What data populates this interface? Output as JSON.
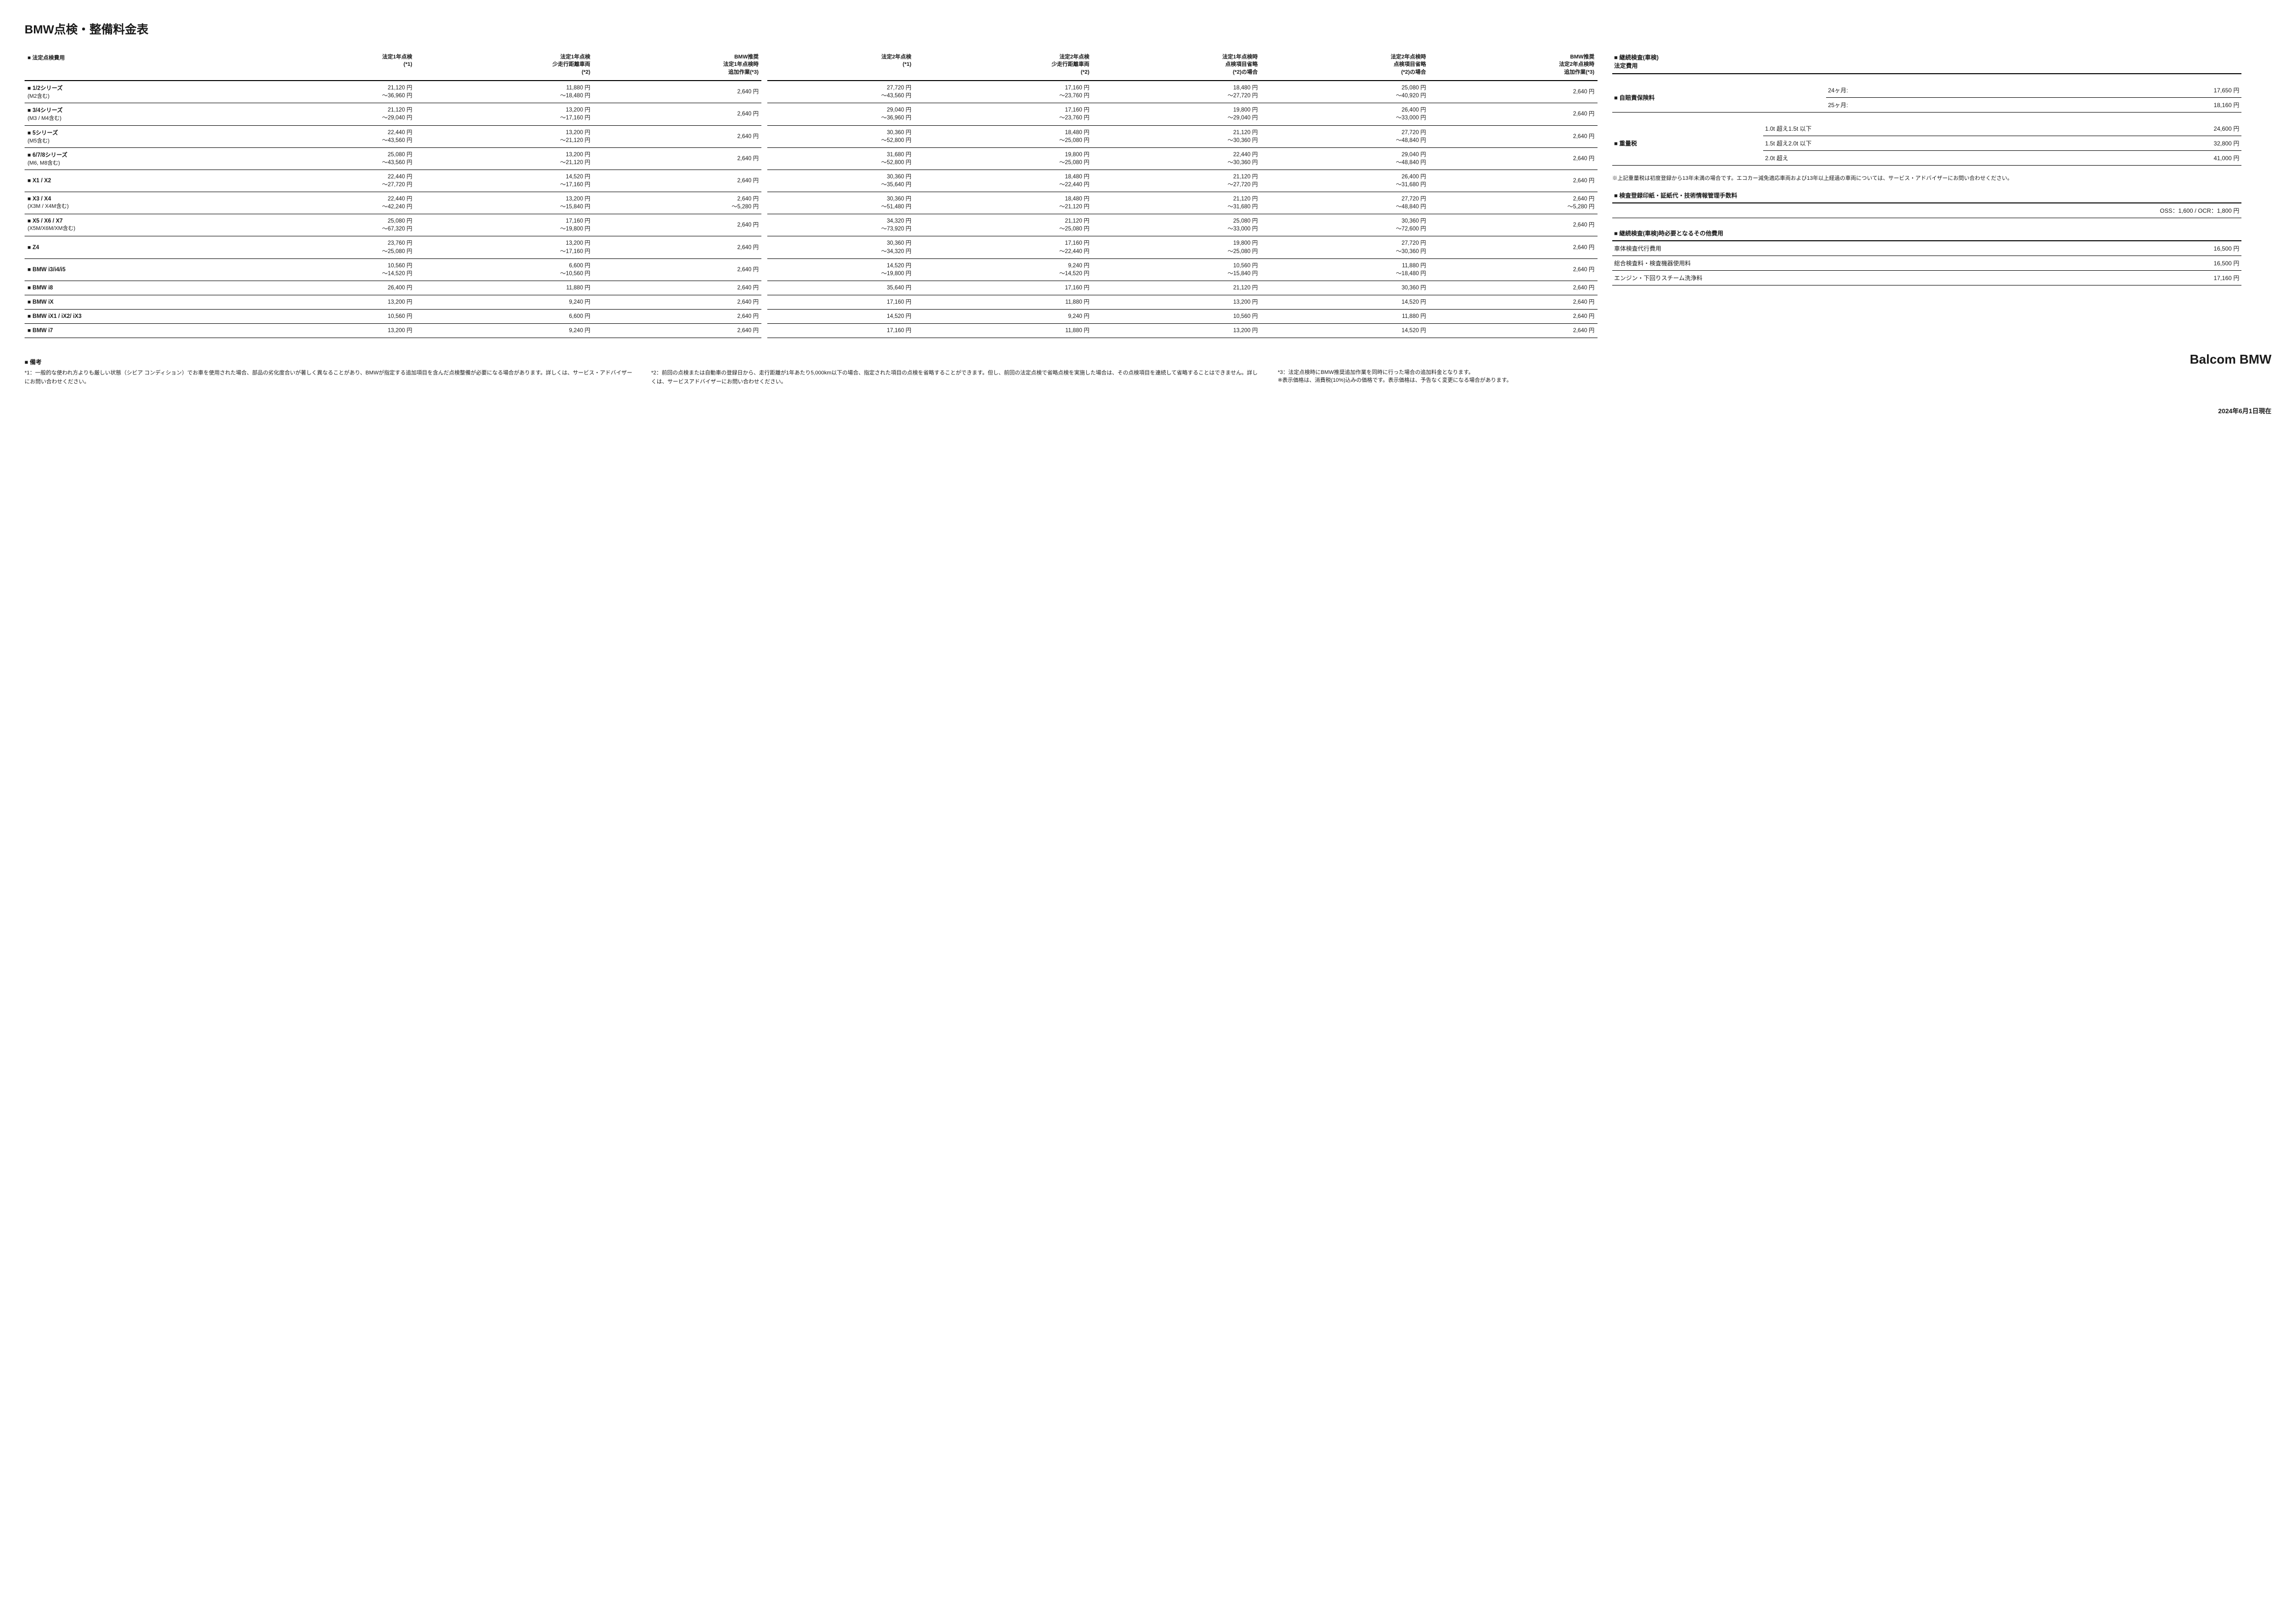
{
  "title": "BMW点検・整備料金表",
  "mainTable": {
    "heading": "■ 法定点検費用",
    "columns": [
      "法定1年点検\n(*1)",
      "法定1年点検\n少走行距離車両\n(*2)",
      "BMW推奨\n法定1年点検時\n追加作業(*3)",
      "法定2年点検\n(*1)",
      "法定2年点検\n少走行距離車両\n(*2)",
      "法定1年点検時\n点検項目省略\n(*2)の場合",
      "法定2年点検時\n点検項目省略\n(*2)の場合",
      "BMW推奨\n法定2年点検時\n追加作業(*3)"
    ],
    "rows": [
      {
        "model": "■ 1/2シリーズ",
        "sub": "(M2含む)",
        "c": [
          "21,120 円\n～36,960 円",
          "11,880 円\n～18,480 円",
          "2,640 円",
          "27,720 円\n～43,560 円",
          "17,160 円\n～23,760 円",
          "18,480 円\n～27,720 円",
          "25,080 円\n～40,920 円",
          "2,640 円"
        ]
      },
      {
        "model": "■ 3/4シリーズ",
        "sub": "(M3 / M4含む)",
        "c": [
          "21,120 円\n～29,040 円",
          "13,200 円\n～17,160 円",
          "2,640 円",
          "29,040 円\n～36,960 円",
          "17,160 円\n～23,760 円",
          "19,800 円\n～29,040 円",
          "26,400 円\n～33,000 円",
          "2,640 円"
        ]
      },
      {
        "model": "■ 5シリーズ",
        "sub": "(M5含む)",
        "c": [
          "22,440 円\n～43,560 円",
          "13,200 円\n～21,120 円",
          "2,640 円",
          "30,360 円\n～52,800 円",
          "18,480 円\n～25,080 円",
          "21,120 円\n～30,360 円",
          "27,720 円\n～48,840 円",
          "2,640 円"
        ]
      },
      {
        "model": "■ 6/7/8シリーズ",
        "sub": "(M6, M8含む)",
        "c": [
          "25,080 円\n～43,560 円",
          "13,200 円\n～21,120 円",
          "2,640 円",
          "31,680 円\n～52,800 円",
          "19,800 円\n～25,080 円",
          "22,440 円\n～30,360 円",
          "29,040 円\n～48,840 円",
          "2,640 円"
        ]
      },
      {
        "model": "■ X1 / X2",
        "sub": "",
        "c": [
          "22,440 円\n～27,720 円",
          "14,520 円\n～17,160 円",
          "2,640 円",
          "30,360 円\n～35,640 円",
          "18,480 円\n～22,440 円",
          "21,120 円\n～27,720 円",
          "26,400 円\n～31,680 円",
          "2,640 円"
        ]
      },
      {
        "model": "■ X3 / X4",
        "sub": "(X3M / X4M含む)",
        "c": [
          "22,440 円\n～42,240 円",
          "13,200 円\n～15,840 円",
          "2,640 円\n～5,280 円",
          "30,360 円\n～51,480 円",
          "18,480 円\n～21,120 円",
          "21,120 円\n～31,680 円",
          "27,720 円\n～48,840 円",
          "2,640 円\n～5,280 円"
        ]
      },
      {
        "model": "■ X5 / X6 / X7",
        "sub": "(X5M/X6M/XM含む)",
        "c": [
          "25,080 円\n～67,320 円",
          "17,160 円\n～19,800 円",
          "2,640 円",
          "34,320 円\n～73,920 円",
          "21,120 円\n～25,080 円",
          "25,080 円\n～33,000 円",
          "30,360 円\n～72,600 円",
          "2,640 円"
        ]
      },
      {
        "model": "■ Z4",
        "sub": "",
        "c": [
          "23,760 円\n～25,080 円",
          "13,200 円\n～17,160 円",
          "2,640 円",
          "30,360 円\n～34,320 円",
          "17,160 円\n～22,440 円",
          "19,800 円\n～25,080 円",
          "27,720 円\n～30,360 円",
          "2,640 円"
        ]
      },
      {
        "model": "■ BMW i3/i4/i5",
        "sub": "",
        "c": [
          "10,560 円\n～14,520 円",
          "6,600 円\n～10,560 円",
          "2,640 円",
          "14,520 円\n～19,800 円",
          "9,240 円\n～14,520 円",
          "10,560 円\n～15,840 円",
          "11,880 円\n～18,480 円",
          "2,640 円"
        ]
      },
      {
        "model": "■ BMW i8",
        "sub": "",
        "c": [
          "26,400 円",
          "11,880 円",
          "2,640 円",
          "35,640 円",
          "17,160 円",
          "21,120 円",
          "30,360 円",
          "2,640 円"
        ]
      },
      {
        "model": "■ BMW iX",
        "sub": "",
        "c": [
          "13,200 円",
          "9,240 円",
          "2,640 円",
          "17,160 円",
          "11,880 円",
          "13,200 円",
          "14,520 円",
          "2,640 円"
        ]
      },
      {
        "model": "■ BMW iX1 / iX2/ iX3",
        "sub": "",
        "c": [
          "10,560 円",
          "6,600 円",
          "2,640 円",
          "14,520 円",
          "9,240 円",
          "10,560 円",
          "11,880 円",
          "2,640 円"
        ]
      },
      {
        "model": "■ BMW i7",
        "sub": "",
        "c": [
          "13,200 円",
          "9,240 円",
          "2,640 円",
          "17,160 円",
          "11,880 円",
          "13,200 円",
          "14,520 円",
          "2,640 円"
        ]
      }
    ]
  },
  "side": {
    "shakenHeading": "■ 継続検査(車検)\n法定費用",
    "jibai": {
      "label": "■ 自賠責保険料",
      "rows": [
        {
          "k": "24ヶ月:",
          "v": "17,650 円"
        },
        {
          "k": "25ヶ月:",
          "v": "18,160 円"
        }
      ]
    },
    "weightTax": {
      "label": "■ 重量税",
      "rows": [
        {
          "k": "1.0t 超え1.5t 以下",
          "v": "24,600 円"
        },
        {
          "k": "1.5t 超え2.0t 以下",
          "v": "32,800 円"
        },
        {
          "k": "2.0t 超え",
          "v": "41,000 円"
        }
      ]
    },
    "weightNote": "※上記重量税は初度登録から13年未満の場合です。エコカー減免適応車両および13年以上経過の車両については、サービス・アドバイザーにお問い合わせください。",
    "kensaHeading": "■ 検査登録印紙・証紙代・技術情報管理手数料",
    "kensaValue": "OSS：1,600 / OCR：1,800 円",
    "otherHeading": "■ 継続検査(車検)時必要となるその他費用",
    "otherRows": [
      {
        "k": "車体検査代行費用",
        "v": "16,500 円"
      },
      {
        "k": "総合検査料・検査機器使用料",
        "v": "16,500 円"
      },
      {
        "k": "エンジン・下回りスチーム洗浄料",
        "v": "17,160 円"
      }
    ]
  },
  "remarks": {
    "heading": "■ 備考",
    "r1": "*1：一般的な使われ方よりも厳しい状態（シビア コンディション）でお車を使用された場合、部品の劣化度合いが著しく異なることがあり、BMWが指定する追加項目を含んだ点検整備が必要になる場合があります。詳しくは、サービス・アドバイザーにお問い合わせください。",
    "r2": "*2：前回の点検または自動車の登録日から、走行距離が1年あたり5,000km以下の場合、指定された項目の点検を省略することができます。但し、前回の法定点検で省略点検を実施した場合は、その点検項目を連続して省略することはできません。詳しくは、サービスアドバイザーにお問い合わせください。",
    "r3": "*3：法定点検時にBMW推奨追加作業を同時に行った場合の追加料金となります。\n※表示価格は、消費税(10%)込みの価格です。表示価格は、予告なく変更になる場合があります。"
  },
  "brand": "Balcom BMW",
  "date": "2024年6月1日現在"
}
